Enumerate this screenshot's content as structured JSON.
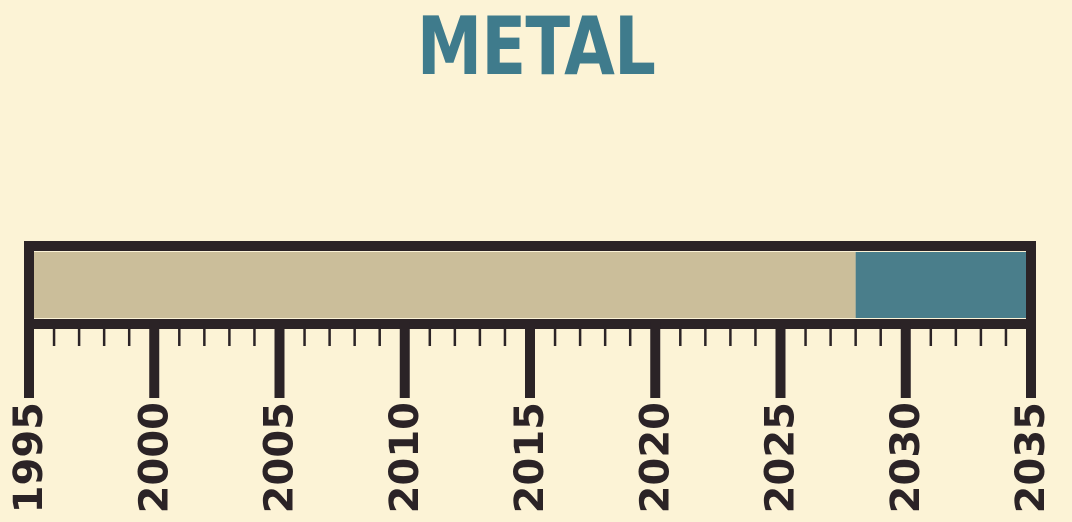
{
  "title": "METAL",
  "colors": {
    "background": "#fcf3d6",
    "title": "#3f7b8c",
    "frame": "#2b2326",
    "elapsed_fill": "#cbbe9a",
    "remaining_fill": "#4a7e8b"
  },
  "chart_data": {
    "type": "bar",
    "orientation": "horizontal timeline",
    "title": "METAL",
    "xlim": [
      1995,
      2035
    ],
    "major_tick_step": 5,
    "minor_tick_step": 1,
    "tick_labels": [
      "1995",
      "2000",
      "2005",
      "2010",
      "2015",
      "2020",
      "2025",
      "2030",
      "2035"
    ],
    "segments": [
      {
        "start": 1995,
        "end": 2028,
        "color": "#cbbe9a"
      },
      {
        "start": 2028,
        "end": 2035,
        "color": "#4a7e8b"
      }
    ]
  }
}
